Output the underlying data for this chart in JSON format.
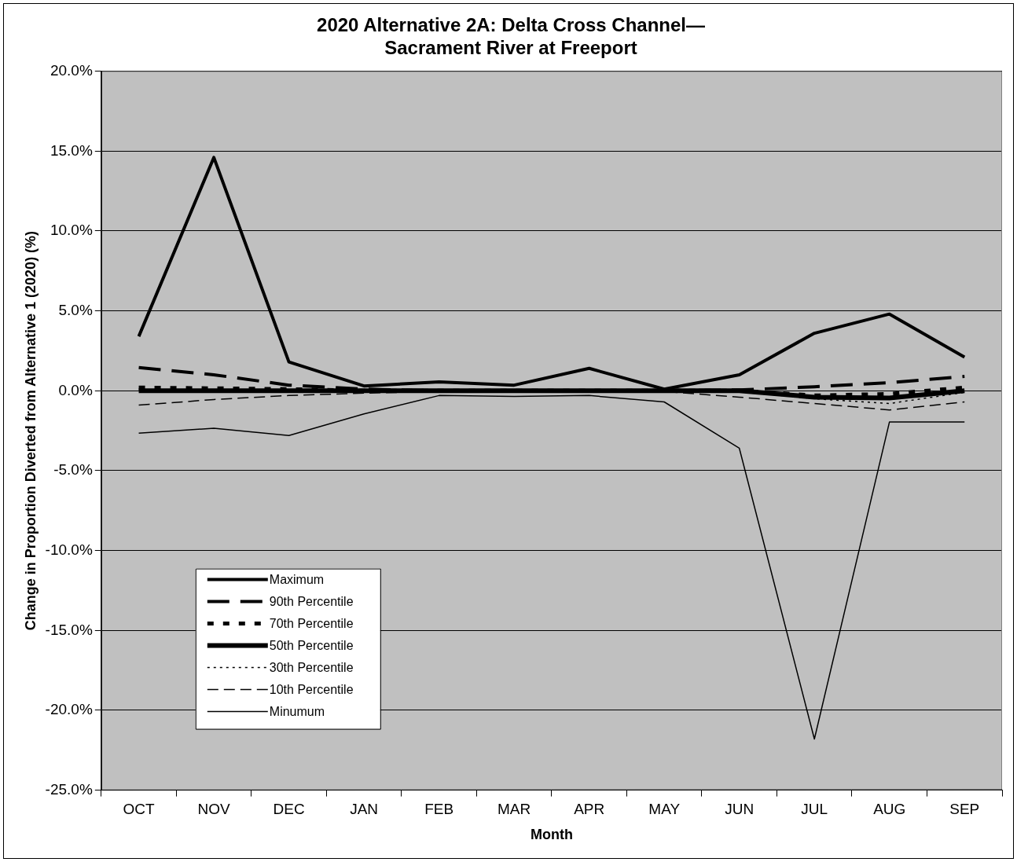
{
  "chart_data": {
    "type": "line",
    "title": [
      "2020 Alternative 2A: Delta Cross Channel—",
      "Sacrament River at Freeport"
    ],
    "xlabel": "Month",
    "ylabel": "Change in Proportion Diverted from Alternative 1 (2020) (%)",
    "categories": [
      "OCT",
      "NOV",
      "DEC",
      "JAN",
      "FEB",
      "MAR",
      "APR",
      "MAY",
      "JUN",
      "JUL",
      "AUG",
      "SEP"
    ],
    "series": [
      {
        "name": "Maximum",
        "color": "#000000",
        "line_style": "solid",
        "values": [
          3.4,
          14.6,
          1.8,
          0.3,
          0.55,
          0.35,
          1.4,
          0.1,
          1.0,
          3.6,
          4.8,
          2.1
        ]
      },
      {
        "name": "90th Percentile",
        "color": "#000000",
        "line_style": "dashed",
        "values": [
          1.45,
          1.0,
          0.35,
          0.1,
          0,
          0,
          0,
          0,
          0.05,
          0.25,
          0.5,
          0.9
        ]
      },
      {
        "name": "70th Percentile",
        "color": "#000000",
        "line_style": "dotted",
        "values": [
          0.2,
          0.15,
          0.1,
          0,
          0,
          0,
          0,
          0,
          0,
          -0.3,
          -0.2,
          0.2
        ]
      },
      {
        "name": "50th Percentile",
        "color": "#000000",
        "line_style": "solid",
        "values": [
          0,
          0,
          0,
          0,
          0,
          0,
          0,
          0,
          0,
          -0.4,
          -0.45,
          0
        ]
      },
      {
        "name": "30th Percentile",
        "color": "#000000",
        "line_style": "dotted",
        "values": [
          0,
          0,
          0,
          0,
          0,
          0,
          0,
          0,
          -0.05,
          -0.5,
          -0.8,
          -0.1
        ]
      },
      {
        "name": "10th Percentile",
        "color": "#000000",
        "line_style": "dashed",
        "values": [
          -0.9,
          -0.55,
          -0.3,
          -0.15,
          -0.05,
          0,
          0,
          -0.05,
          -0.4,
          -0.8,
          -1.2,
          -0.7
        ]
      },
      {
        "name": "Minumum",
        "color": "#000000",
        "line_style": "solid",
        "values": [
          -2.65,
          -2.35,
          -2.8,
          -1.45,
          -0.3,
          -0.35,
          -0.3,
          -0.7,
          -3.6,
          -21.8,
          -1.95,
          -1.95
        ]
      }
    ],
    "ylim": [
      -25,
      20
    ],
    "yticks": [
      {
        "value": -25,
        "label": "-25.0%"
      },
      {
        "value": -20,
        "label": "-20.0%"
      },
      {
        "value": -15,
        "label": "-15.0%"
      },
      {
        "value": -10,
        "label": "-10.0%"
      },
      {
        "value": -5,
        "label": "-5.0%"
      },
      {
        "value": 0,
        "label": "0.0%"
      },
      {
        "value": 5,
        "label": "5.0%"
      },
      {
        "value": 10,
        "label": "10.0%"
      },
      {
        "value": 15,
        "label": "15.0%"
      },
      {
        "value": 20,
        "label": "20.0%"
      }
    ],
    "grid": "y",
    "legend": "bottom left",
    "marker": "none"
  }
}
